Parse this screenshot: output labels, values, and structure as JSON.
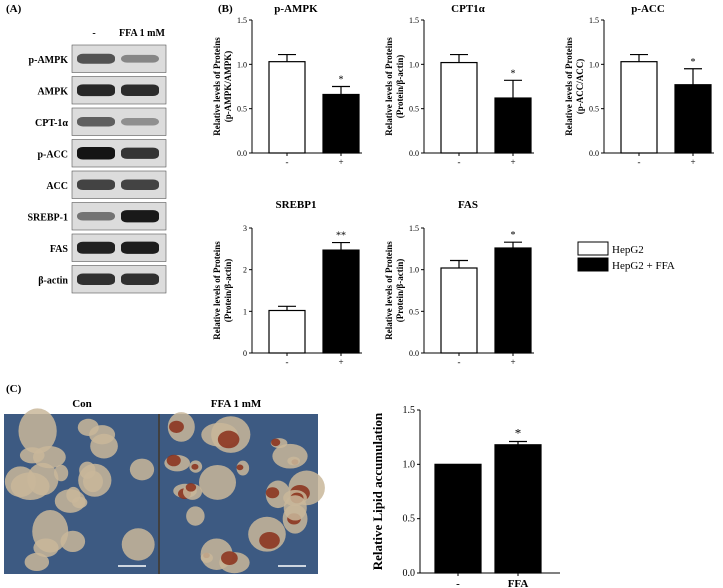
{
  "panel_labels": {
    "a": "(A)",
    "b": "(B)",
    "c": "(C)"
  },
  "western_blot": {
    "lane_labels": [
      "-",
      "FFA 1 mM"
    ],
    "rows": [
      {
        "label": "p-AMPK",
        "lane1": 0.62,
        "lane2": 0.35
      },
      {
        "label": "AMPK",
        "lane1": 0.85,
        "lane2": 0.82
      },
      {
        "label": "CPT-1α",
        "lane1": 0.55,
        "lane2": 0.3
      },
      {
        "label": "p-ACC",
        "lane1": 0.95,
        "lane2": 0.78
      },
      {
        "label": "ACC",
        "lane1": 0.7,
        "lane2": 0.7
      },
      {
        "label": "SREBP-1",
        "lane1": 0.45,
        "lane2": 0.92
      },
      {
        "label": "FAS",
        "lane1": 0.88,
        "lane2": 0.9
      },
      {
        "label": "β-actin",
        "lane1": 0.8,
        "lane2": 0.8
      }
    ]
  },
  "legend": {
    "items": [
      {
        "label": "HepG2",
        "color": "#ffffff"
      },
      {
        "label": "HepG2 + FFA",
        "color": "#000000"
      }
    ]
  },
  "micrographs": {
    "labels": [
      "Con",
      "FFA 1 mM"
    ],
    "bg_color": "#3d5a82",
    "cell_color": "#c9b79a",
    "stain_color": "#8a2f1a"
  },
  "chart_data": [
    {
      "type": "bar",
      "title": "p-AMPK",
      "ylabel": "Relative levels of Proteins (p-AMPK/AMPK)",
      "ylabel_lines": [
        "Relative levels of Proteins",
        "(p-AMPK/AMPK)"
      ],
      "categories": [
        "-",
        "+"
      ],
      "values": [
        1.03,
        0.66
      ],
      "errors": [
        0.08,
        0.09
      ],
      "colors": [
        "#ffffff",
        "#000000"
      ],
      "significance": [
        "",
        "*"
      ],
      "ylim": [
        0,
        1.5
      ],
      "yticks": [
        "0.0",
        "0.5",
        "1.0",
        "1.5"
      ],
      "ytick_values": [
        0,
        0.5,
        1.0,
        1.5
      ]
    },
    {
      "type": "bar",
      "title": "CPT1α",
      "ylabel": "Relative levels of Proteins (Protein/β-actin)",
      "ylabel_lines": [
        "Relative levels of Proteins",
        "(Protein/β-actin)"
      ],
      "categories": [
        "-",
        "+"
      ],
      "values": [
        1.02,
        0.62
      ],
      "errors": [
        0.09,
        0.2
      ],
      "colors": [
        "#ffffff",
        "#000000"
      ],
      "significance": [
        "",
        "*"
      ],
      "ylim": [
        0,
        1.5
      ],
      "yticks": [
        "0.0",
        "0.5",
        "1.0",
        "1.5"
      ],
      "ytick_values": [
        0,
        0.5,
        1.0,
        1.5
      ]
    },
    {
      "type": "bar",
      "title": "p-ACC",
      "ylabel": "Relative levels of Proteins (p-ACC/ACC)",
      "ylabel_lines": [
        "Relative levels of Proteins",
        "(p-ACC/ACC)"
      ],
      "categories": [
        "-",
        "+"
      ],
      "values": [
        1.03,
        0.77
      ],
      "errors": [
        0.08,
        0.18
      ],
      "colors": [
        "#ffffff",
        "#000000"
      ],
      "significance": [
        "",
        "*"
      ],
      "ylim": [
        0,
        1.5
      ],
      "yticks": [
        "0.0",
        "0.5",
        "1.0",
        "1.5"
      ],
      "ytick_values": [
        0,
        0.5,
        1.0,
        1.5
      ]
    },
    {
      "type": "bar",
      "title": "SREBP1",
      "ylabel": "Relative levels of Proteins (Protein/β-actin)",
      "ylabel_lines": [
        "Relative levels of Proteins",
        "(Protein/β-actin)"
      ],
      "categories": [
        "-",
        "+"
      ],
      "values": [
        1.02,
        2.47
      ],
      "errors": [
        0.1,
        0.18
      ],
      "colors": [
        "#ffffff",
        "#000000"
      ],
      "significance": [
        "",
        "**"
      ],
      "ylim": [
        0,
        3
      ],
      "yticks": [
        "0",
        "1",
        "2",
        "3"
      ],
      "ytick_values": [
        0,
        1,
        2,
        3
      ]
    },
    {
      "type": "bar",
      "title": "FAS",
      "ylabel": "Relative levels of Proteins (Protein/β-actin)",
      "ylabel_lines": [
        "Relative levels of Proteins",
        "(Protein/β-actin)"
      ],
      "categories": [
        "-",
        "+"
      ],
      "values": [
        1.02,
        1.26
      ],
      "errors": [
        0.09,
        0.07
      ],
      "colors": [
        "#ffffff",
        "#000000"
      ],
      "significance": [
        "",
        "*"
      ],
      "ylim": [
        0,
        1.5
      ],
      "yticks": [
        "0.0",
        "0.5",
        "1.0",
        "1.5"
      ],
      "ytick_values": [
        0,
        0.5,
        1.0,
        1.5
      ]
    },
    {
      "type": "bar",
      "title": "",
      "ylabel": "Relative Lipid accumulation",
      "ylabel_lines": [
        "Relative Lipid accumulation"
      ],
      "categories": [
        "-",
        "FFA"
      ],
      "values": [
        1.0,
        1.18
      ],
      "errors": [
        0.0,
        0.03
      ],
      "colors": [
        "#000000",
        "#000000"
      ],
      "significance": [
        "",
        "*"
      ],
      "ylim": [
        0,
        1.5
      ],
      "yticks": [
        "0.0",
        "0.5",
        "1.0",
        "1.5"
      ],
      "ytick_values": [
        0,
        0.5,
        1.0,
        1.5
      ]
    }
  ]
}
